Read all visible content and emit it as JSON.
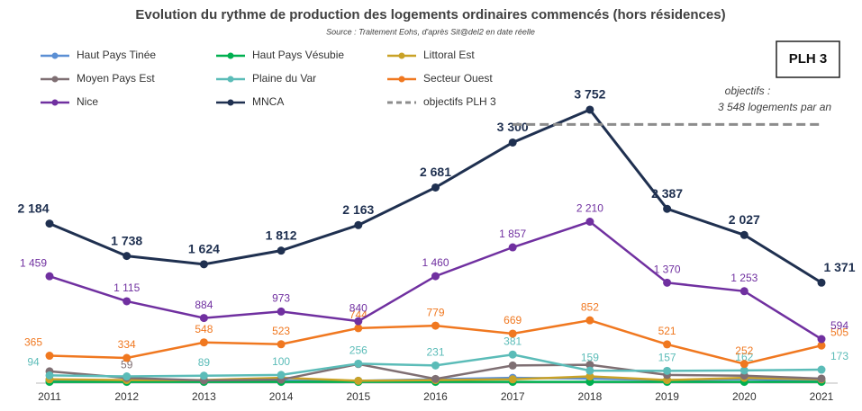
{
  "chart_data": {
    "type": "line",
    "title": "Evolution du rythme de production des logements ordinaires commencés (hors résidences)",
    "subtitle": "Source : Traitement Eohs, d'après Sit@del2 en date réelle",
    "badge": "PLH 3",
    "annotation": [
      "objectifs :",
      "3 548 logements par an"
    ],
    "categories": [
      "2011",
      "2012",
      "2013",
      "2014",
      "2015",
      "2016",
      "2017",
      "2018",
      "2019",
      "2020",
      "2021"
    ],
    "ylim": [
      0,
      3900
    ],
    "series": [
      {
        "name": "Haut Pays Tinée",
        "color": "#5b8fd4",
        "values": [
          30,
          25,
          15,
          20,
          20,
          40,
          60,
          50,
          30,
          40,
          20
        ]
      },
      {
        "name": "Haut Pays Vésubie",
        "color": "#00b050",
        "values": [
          5,
          5,
          5,
          5,
          5,
          5,
          5,
          5,
          5,
          5,
          5
        ]
      },
      {
        "name": "Littoral Est",
        "color": "#c9a227",
        "values": [
          40,
          30,
          30,
          60,
          20,
          30,
          40,
          80,
          30,
          60,
          40
        ]
      },
      {
        "name": "Moyen Pays Est",
        "color": "#7f6f73",
        "values": [
          150,
          59,
          25,
          35,
          250,
          45,
          230,
          240,
          100,
          90,
          50
        ],
        "value_labels": [
          null,
          "59",
          null,
          null,
          null,
          null,
          null,
          null,
          null,
          null,
          null
        ]
      },
      {
        "name": "Plaine du Var",
        "color": "#5bbcb8",
        "values": [
          94,
          80,
          89,
          100,
          256,
          231,
          381,
          159,
          157,
          162,
          173
        ],
        "value_labels": [
          "94",
          null,
          "89",
          "100",
          "256",
          "231",
          "381",
          "159",
          "157",
          "162",
          "173"
        ]
      },
      {
        "name": "Secteur Ouest",
        "color": "#f07820",
        "values": [
          365,
          334,
          548,
          523,
          744,
          779,
          669,
          852,
          521,
          252,
          505
        ],
        "value_labels": [
          "365",
          "334",
          "548",
          "523",
          "744",
          "779",
          "669",
          "852",
          "521",
          "252",
          "505"
        ]
      },
      {
        "name": "Nice",
        "color": "#7030a0",
        "values": [
          1459,
          1115,
          884,
          973,
          840,
          1460,
          1857,
          2210,
          1370,
          1253,
          594
        ],
        "value_labels": [
          "1 459",
          "1 115",
          "884",
          "973",
          "840",
          "1 460",
          "1 857",
          "2 210",
          "1 370",
          "1 253",
          "594"
        ]
      },
      {
        "name": "MNCA",
        "color": "#1f3050",
        "values": [
          2184,
          1738,
          1624,
          1812,
          2163,
          2681,
          3300,
          3752,
          2387,
          2027,
          1371
        ],
        "value_labels": [
          "2 184",
          "1 738",
          "1 624",
          "1 812",
          "2 163",
          "2 681",
          "3 300",
          "3 752",
          "2 387",
          "2 027",
          "1 371"
        ],
        "bold": true
      },
      {
        "name": "objectifs PLH 3",
        "color": "#8c8c8c",
        "dashed": true,
        "values": [
          null,
          null,
          null,
          null,
          null,
          null,
          3548,
          3548,
          3548,
          3548,
          3548
        ]
      }
    ]
  }
}
